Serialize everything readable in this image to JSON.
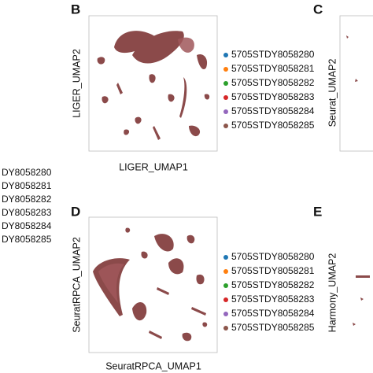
{
  "legend_colors": [
    "#1f77b4",
    "#ff7f0e",
    "#2ca02c",
    "#d62728",
    "#9467bd",
    "#8c564b"
  ],
  "left_legend": {
    "labels": [
      "DY8058280",
      "DY8058281",
      "DY8058282",
      "DY8058283",
      "DY8058284",
      "DY8058285"
    ]
  },
  "panels": [
    {
      "letter": "B",
      "x_label": "LIGER_UMAP1",
      "y_label": "LIGER_UMAP2",
      "legend": [
        "5705STDY8058280",
        "5705STDY8058281",
        "5705STDY8058282",
        "5705STDY8058283",
        "5705STDY8058284",
        "5705STDY8058285"
      ]
    },
    {
      "letter": "C",
      "y_label": "Seurat_UMAP2"
    },
    {
      "letter": "D",
      "x_label": "SeuratRPCA_UMAP1",
      "y_label": "SeuratRPCA_UMAP2",
      "legend": [
        "5705STDY8058280",
        "5705STDY8058281",
        "5705STDY8058282",
        "5705STDY8058283",
        "5705STDY8058284",
        "5705STDY8058285"
      ]
    },
    {
      "letter": "E",
      "y_label": "Harmony_UMAP2"
    }
  ]
}
